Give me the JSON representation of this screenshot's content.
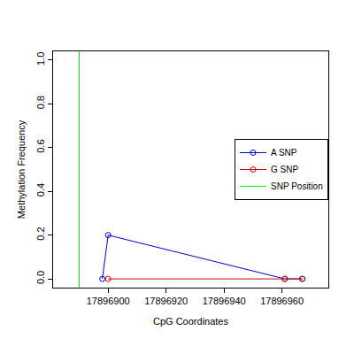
{
  "chart_data": {
    "type": "line",
    "x_label": "CpG Coordinates",
    "y_label": "Methylation Frequency",
    "series": [
      {
        "name": "A SNP",
        "color": "#0000cc",
        "marker": "circle-open",
        "line_style": "solid",
        "x": [
          17896898,
          17896900,
          17896961,
          17896967
        ],
        "values": [
          0,
          0.2,
          0,
          0
        ]
      },
      {
        "name": "G SNP",
        "color": "#cc0000",
        "marker": "circle-open",
        "line_style": "solid",
        "x": [
          17896900,
          17896961,
          17896967
        ],
        "values": [
          0,
          0,
          0
        ]
      },
      {
        "name": "SNP Position",
        "color": "#00ee00",
        "type": "vline",
        "line_style": "solid",
        "x": [
          17896890
        ]
      }
    ],
    "xlim": [
      17896881,
      17896976
    ],
    "xticks": [
      17896900,
      17896920,
      17896940,
      17896960
    ],
    "ylim": [
      -0.04,
      1.04
    ],
    "yticks": [
      {
        "value": 0,
        "label": "0.0"
      },
      0.2,
      0.4,
      0.6,
      0.8,
      {
        "value": 1,
        "label": "1.0"
      }
    ],
    "grid": false,
    "legend": "right"
  }
}
